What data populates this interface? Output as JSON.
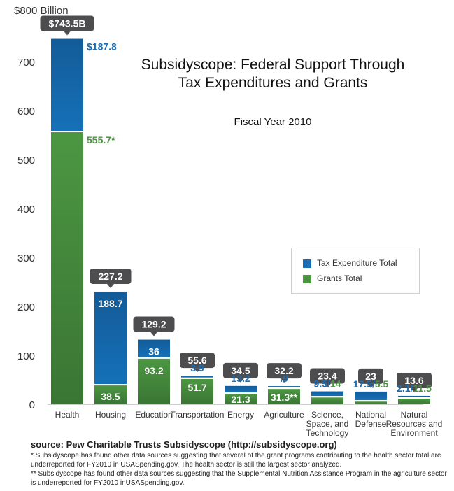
{
  "chart_data": {
    "type": "bar",
    "stacked": true,
    "title": "Subsidyscope: Federal Support Through Tax Expenditures and Grants",
    "subtitle": "Fiscal Year 2010",
    "ylabel": "$800 Billion",
    "ylim": [
      0,
      800
    ],
    "yticks": [
      0,
      100,
      200,
      300,
      400,
      500,
      600,
      700
    ],
    "legend_position": "center-right",
    "categories": [
      "Health",
      "Housing",
      "Education",
      "Transportation",
      "Energy",
      "Agriculture",
      "Science, Space, and Technology",
      "National Defense",
      "Natural Resources and Environment"
    ],
    "category_label_lines": [
      [
        "Health"
      ],
      [
        "Housing"
      ],
      [
        "Education"
      ],
      [
        "Transportation"
      ],
      [
        "Energy"
      ],
      [
        "Agriculture"
      ],
      [
        "Science,",
        "Space, and",
        "Technology"
      ],
      [
        "National",
        "Defense"
      ],
      [
        "Natural",
        "Resources and",
        "Environment"
      ]
    ],
    "series": [
      {
        "name": "Grants Total",
        "color": "#4a9440",
        "values": [
          555.7,
          38.5,
          93.2,
          51.7,
          21.3,
          31.3,
          14,
          5.5,
          11.5
        ]
      },
      {
        "name": "Tax Expenditure Total",
        "color": "#1a6db3",
        "values": [
          187.8,
          188.7,
          36,
          3.9,
          13.2,
          0.9,
          9.5,
          17.5,
          2.1
        ]
      }
    ],
    "totals": [
      743.5,
      227.2,
      129.2,
      55.6,
      34.5,
      32.2,
      23.4,
      23,
      13.6
    ],
    "total_labels": [
      "$743.5B",
      "227.2",
      "129.2",
      "55.6",
      "34.5",
      "32.2",
      "23.4",
      "23",
      "13.6"
    ],
    "tax_labels": [
      "$187.8",
      "188.7",
      "36",
      "3.9",
      "13.2",
      ".9",
      "9.5",
      "17.5",
      "2.1"
    ],
    "grant_labels": [
      "555.7*",
      "38.5",
      "93.2",
      "51.7",
      "21.3",
      "31.3**",
      "14",
      "5.5",
      "11.5"
    ]
  },
  "title": {
    "main": "Subsidyscope: Federal Support Through Tax Expenditures and Grants",
    "sub": "Fiscal Year 2010"
  },
  "legend": {
    "items": [
      {
        "label": "Tax Expenditure Total",
        "color": "#1a6db3"
      },
      {
        "label": "Grants Total",
        "color": "#4a9440"
      }
    ]
  },
  "footer": {
    "source": "source: Pew Charitable Trusts  Subsidyscope (http://subsidyscope.org)",
    "note1": "* Subsidyscope has found other data sources suggesting that several of the grant programs contributing to the health sector total are underreported for FY2010 in USASpending.gov. The health sector is still the largest sector analyzed.",
    "note2": "** Subsidyscope has found other data sources suggesting that the Supplemental Nutrition Assistance Program in the agriculture sector is underreported for FY2010 inUSASpending.gov."
  },
  "colors": {
    "tax": "#1a6db3",
    "grants": "#4a9440",
    "tax_dark": "#145a96",
    "grants_dark": "#3d7a35",
    "callout": "#4d4d4f",
    "axis_text": "#333333"
  }
}
